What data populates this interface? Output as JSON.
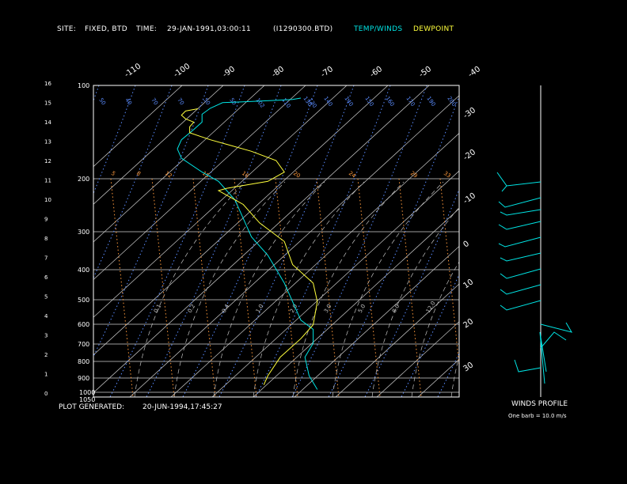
{
  "header": {
    "site_label": "SITE:",
    "site_value": "FIXED, BTD",
    "time_label": "TIME:",
    "time_value": "29-JAN-1991,03:00:11",
    "file_id": "(I1290300.BTD)",
    "legend_temp": "TEMP/WINDS",
    "legend_dew": "DEWPOINT"
  },
  "footer": {
    "generated_label": "PLOT GENERATED:",
    "generated_value": "20-JUN-1994,17:45:27",
    "winds_title": "WINDS PROFILE",
    "barb_note": "One barb = 10.0 m/s"
  },
  "colors": {
    "background": "#000000",
    "temp": "#00e5e5",
    "dewpoint": "#ffff3c",
    "isotherm": "#cfcfcf",
    "mixing_ratio": "#ff9a3c",
    "dry_adiabat": "#5a8cff",
    "moist_adiabat": "#c0c0c0",
    "frame": "#ffffff"
  },
  "chart_data": {
    "type": "line",
    "diagram": "skew-T log-P",
    "pressure_levels": [
      "100",
      "200",
      "300",
      "400",
      "500",
      "600",
      "700",
      "800",
      "900",
      "1000",
      "1050"
    ],
    "height_km_ticks": [
      "0",
      "1",
      "2",
      "3",
      "4",
      "5",
      "6",
      "7",
      "8",
      "9",
      "10",
      "11",
      "12",
      "13",
      "14",
      "15",
      "16"
    ],
    "temp_top_ticks": [
      "-110",
      "-100",
      "-90",
      "-80",
      "-70",
      "-60",
      "-50",
      "-40"
    ],
    "temp_right_ticks": [
      "-30",
      "-20",
      "-10",
      "0",
      "10",
      "20",
      "30"
    ],
    "dry_adiabat_labels": [
      "50",
      "40",
      "70",
      "70",
      "50",
      "50",
      "102",
      "110",
      "130",
      "130",
      "140",
      "140",
      "150",
      "160",
      "170",
      "190",
      "200"
    ],
    "mixing_ratio_labels": [
      "5",
      "8",
      "12",
      "15",
      "16",
      "20",
      "24",
      "29",
      "33"
    ],
    "moist_labels": [
      "0.1",
      "0.2",
      "0.4",
      "1.0",
      "2.0",
      "3.0",
      "5.0",
      "8.0",
      "12.0"
    ],
    "series": [
      {
        "name": "TEMP/WINDS",
        "points": [
          [
            -54,
            200
          ],
          [
            -56,
            203
          ],
          [
            -60,
            205
          ],
          [
            -68,
            208
          ],
          [
            -73,
            210
          ],
          [
            -76,
            222
          ],
          [
            -78,
            235
          ],
          [
            -78,
            252
          ],
          [
            -80,
            268
          ],
          [
            -83,
            290
          ],
          [
            -84,
            310
          ],
          [
            -83,
            330
          ],
          [
            -78,
            360
          ],
          [
            -74,
            380
          ],
          [
            -70,
            420
          ],
          [
            -68,
            460
          ],
          [
            -66,
            500
          ],
          [
            -62,
            540
          ],
          [
            -60,
            570
          ],
          [
            -58,
            600
          ],
          [
            -56,
            640
          ],
          [
            -54,
            680
          ],
          [
            -51,
            700
          ],
          [
            -51,
            730
          ],
          [
            -53,
            760
          ],
          [
            -52,
            800
          ],
          [
            -50,
            830
          ]
        ]
      },
      {
        "name": "DEWPOINT",
        "points": [
          [
            -79,
            223
          ],
          [
            -82,
            228
          ],
          [
            -83,
            237
          ],
          [
            -82,
            245
          ],
          [
            -80,
            252
          ],
          [
            -81,
            262
          ],
          [
            -81,
            275
          ],
          [
            -76,
            290
          ],
          [
            -72,
            300
          ],
          [
            -66,
            315
          ],
          [
            -60,
            335
          ],
          [
            -58,
            360
          ],
          [
            -62,
            380
          ],
          [
            -72,
            395
          ],
          [
            -74,
            400
          ],
          [
            -68,
            430
          ],
          [
            -64,
            470
          ],
          [
            -58,
            510
          ],
          [
            -56,
            560
          ],
          [
            -51,
            600
          ],
          [
            -50,
            640
          ],
          [
            -51,
            690
          ],
          [
            -54,
            720
          ],
          [
            -59,
            760
          ],
          [
            -62,
            800
          ],
          [
            -63,
            820
          ]
        ]
      }
    ],
    "winds_barbs": [
      {
        "level": "12",
        "pts": [
          [
            683,
            230
          ],
          [
            640,
            235
          ],
          [
            628,
            218
          ],
          [
            640,
            235
          ],
          [
            634,
            242
          ]
        ]
      },
      {
        "level": "11",
        "pts": [
          [
            683,
            250
          ],
          [
            638,
            262
          ],
          [
            630,
            255
          ]
        ]
      },
      {
        "level": "10",
        "pts": [
          [
            683,
            265
          ],
          [
            640,
            272
          ],
          [
            632,
            268
          ]
        ]
      },
      {
        "level": "9",
        "pts": [
          [
            683,
            280
          ],
          [
            640,
            290
          ],
          [
            630,
            284
          ]
        ]
      },
      {
        "level": "8",
        "pts": [
          [
            683,
            300
          ],
          [
            638,
            312
          ],
          [
            630,
            308
          ]
        ]
      },
      {
        "level": "7",
        "pts": [
          [
            683,
            320
          ],
          [
            640,
            330
          ],
          [
            632,
            326
          ]
        ]
      },
      {
        "level": "6",
        "pts": [
          [
            683,
            340
          ],
          [
            640,
            352
          ],
          [
            632,
            346
          ]
        ]
      },
      {
        "level": "5",
        "pts": [
          [
            683,
            360
          ],
          [
            640,
            372
          ],
          [
            632,
            366
          ]
        ]
      },
      {
        "level": "4",
        "pts": [
          [
            683,
            380
          ],
          [
            640,
            392
          ],
          [
            632,
            386
          ]
        ]
      },
      {
        "level": "3",
        "pts": [
          [
            683,
            410
          ],
          [
            722,
            420
          ],
          [
            715,
            408
          ]
        ]
      },
      {
        "level": "2",
        "pts": [
          [
            683,
            440
          ],
          [
            700,
            420
          ],
          [
            715,
            430
          ]
        ]
      },
      {
        "level": "1",
        "pts": [
          [
            683,
            465
          ],
          [
            655,
            470
          ],
          [
            650,
            455
          ]
        ]
      },
      {
        "level": "0",
        "pts": [
          [
            688,
            485
          ],
          [
            682,
            420
          ],
          [
            690,
            470
          ]
        ]
      }
    ],
    "xlim": [
      -120,
      40
    ],
    "ylim": [
      1050,
      100
    ]
  }
}
